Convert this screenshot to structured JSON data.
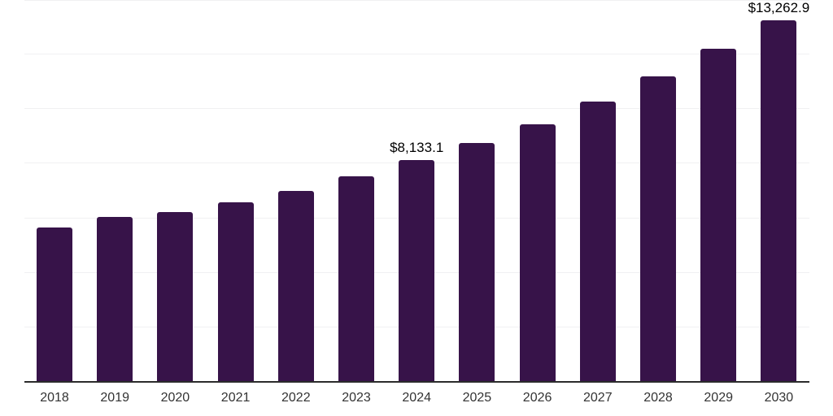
{
  "chart_data": {
    "type": "bar",
    "title": "",
    "xlabel": "",
    "ylabel": "",
    "categories": [
      "2018",
      "2019",
      "2020",
      "2021",
      "2022",
      "2023",
      "2024",
      "2025",
      "2026",
      "2027",
      "2028",
      "2029",
      "2030"
    ],
    "values": [
      5650,
      6040,
      6220,
      6580,
      7005,
      7525,
      8133.1,
      8760,
      9455,
      10265,
      11190,
      12205,
      13262.9
    ],
    "bar_labels": {
      "2024": "$8,133.1",
      "2030": "$13,262.9"
    },
    "ylim": [
      0,
      14000
    ],
    "grid_interval": 2000,
    "grid_on": true,
    "legend": "none",
    "colors": {
      "bar": "#371349",
      "axis_line": "#2b2b2b",
      "gridline": "#f0f0f2",
      "tick_text": "#333333",
      "data_label_text": "#000000",
      "background": "#ffffff"
    }
  }
}
